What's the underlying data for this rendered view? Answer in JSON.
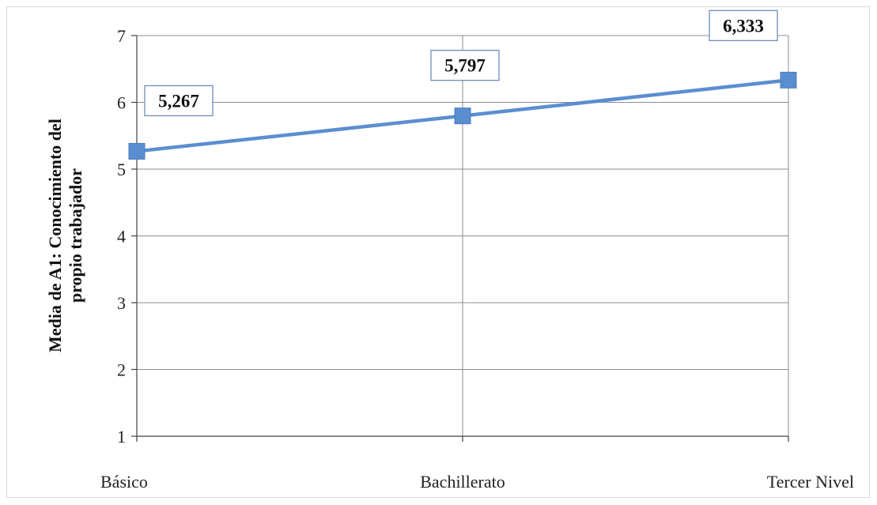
{
  "chart_data": {
    "type": "line",
    "categories": [
      "Básico",
      "Bachillerato",
      "Tercer Nivel"
    ],
    "series": [
      {
        "values": [
          5.267,
          5.797,
          6.333
        ],
        "labels": [
          "5,267",
          "5,797",
          "6,333"
        ]
      }
    ],
    "ylabel_lines": [
      "Media de A1: Conocimiento del",
      "propio trabajador"
    ],
    "ylim": [
      1,
      7
    ],
    "yticks": [
      "1",
      "2",
      "3",
      "4",
      "5",
      "6",
      "7"
    ],
    "grid": true,
    "series_color": "#5b8ed1",
    "marker_color": "#5b8ed1"
  }
}
